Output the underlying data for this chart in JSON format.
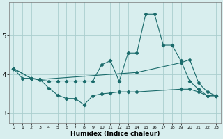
{
  "bg_color": "#d8eeee",
  "grid_color": "#aacece",
  "line_color": "#1a6b6b",
  "xlabel": "Humidex (Indice chaleur)",
  "xlim": [
    -0.5,
    23.5
  ],
  "ylim": [
    2.75,
    5.85
  ],
  "yticks": [
    3,
    4,
    5
  ],
  "xticks": [
    0,
    1,
    2,
    3,
    4,
    5,
    6,
    7,
    8,
    9,
    10,
    11,
    12,
    13,
    14,
    15,
    16,
    17,
    18,
    19,
    20,
    21,
    22,
    23
  ],
  "line1_x": [
    0,
    1,
    2,
    3,
    4,
    5,
    6,
    7,
    8,
    9,
    10,
    11,
    12,
    13,
    14,
    15,
    16,
    17,
    18,
    19,
    20,
    21,
    22,
    23
  ],
  "line1_y": [
    4.15,
    3.9,
    3.9,
    3.85,
    3.83,
    3.83,
    3.83,
    3.83,
    3.83,
    3.83,
    4.25,
    4.35,
    3.82,
    4.55,
    4.55,
    5.55,
    5.55,
    4.75,
    4.75,
    4.35,
    3.82,
    3.62,
    3.45,
    3.45
  ],
  "line2_x": [
    0,
    2,
    3,
    14,
    19,
    20,
    21,
    22,
    23
  ],
  "line2_y": [
    4.15,
    3.9,
    3.87,
    4.05,
    4.3,
    4.38,
    3.78,
    3.55,
    3.45
  ],
  "line3_x": [
    0,
    2,
    3,
    4,
    5,
    6,
    7,
    8,
    9,
    10,
    11,
    12,
    13,
    14,
    19,
    20,
    21,
    22,
    23
  ],
  "line3_y": [
    4.15,
    3.9,
    3.87,
    3.65,
    3.47,
    3.38,
    3.38,
    3.22,
    3.45,
    3.5,
    3.52,
    3.55,
    3.55,
    3.55,
    3.62,
    3.62,
    3.55,
    3.45,
    3.45
  ]
}
